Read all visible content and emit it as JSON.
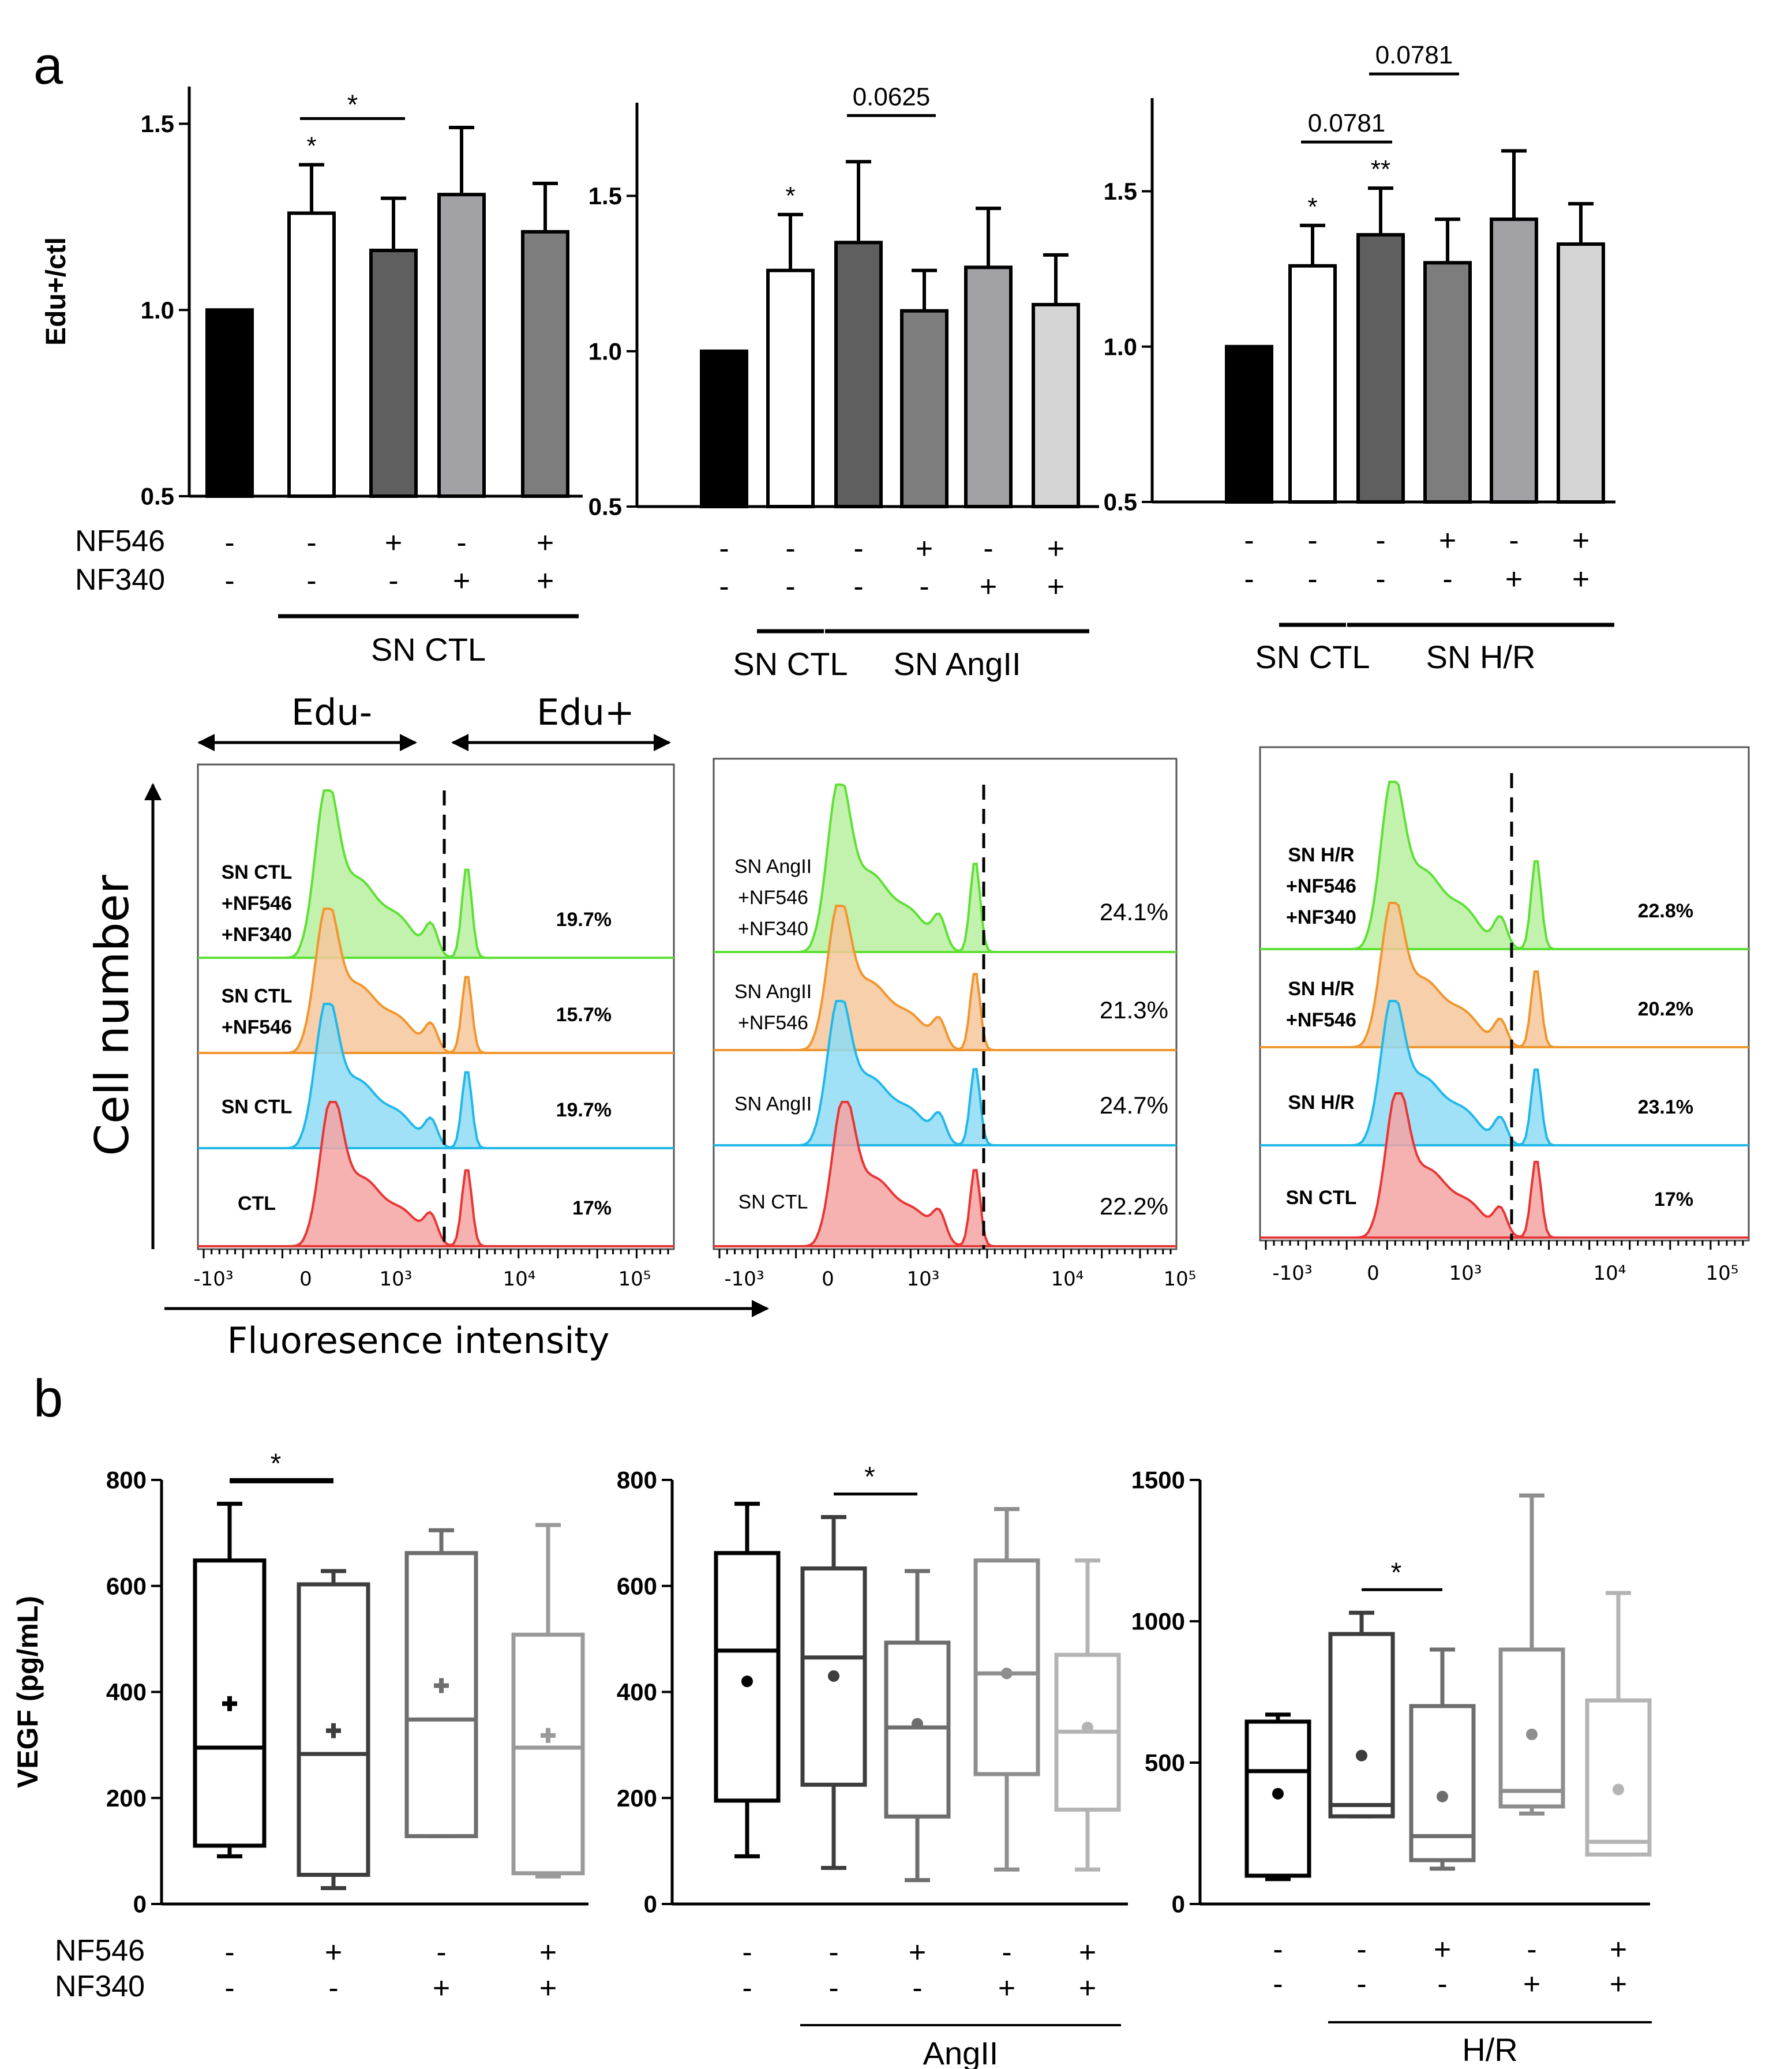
{
  "panel_labels": {
    "a": "a",
    "b": "b"
  },
  "symbols": {
    "minus": "-",
    "plus": "+"
  },
  "treatments": {
    "nf546": "NF546",
    "nf340": "NF340"
  },
  "chart_data": [
    {
      "id": "a1",
      "type": "bar",
      "ylabel": "Edu+/ctl",
      "ylim": [
        0.5,
        1.6
      ],
      "yticks": [
        {
          "v": 0.5,
          "label": "0.5"
        },
        {
          "v": 1.0,
          "label": "1.0"
        },
        {
          "v": 1.5,
          "label": "1.5"
        }
      ],
      "bars": [
        {
          "value": 1.0,
          "err": 0,
          "fill": "#000000"
        },
        {
          "value": 1.26,
          "err": 0.13,
          "fill": "#ffffff",
          "mark": "*"
        },
        {
          "value": 1.16,
          "err": 0.14,
          "fill": "#5f5f5f"
        },
        {
          "value": 1.31,
          "err": 0.18,
          "fill": "#a1a1a6"
        },
        {
          "value": 1.21,
          "err": 0.13,
          "fill": "#7d7d7d"
        }
      ],
      "nf546": [
        "-",
        "-",
        "+",
        "-",
        "+"
      ],
      "nf340": [
        "-",
        "-",
        "-",
        "+",
        "+"
      ],
      "comparisons": [
        {
          "from": 1,
          "to": 2,
          "label": "*"
        }
      ],
      "groups": [
        {
          "from": 1,
          "to": 4,
          "label": "SN CTL"
        }
      ]
    },
    {
      "id": "a2",
      "type": "bar",
      "ylabel": "",
      "ylim": [
        0.5,
        1.8
      ],
      "yticks": [
        {
          "v": 0.5,
          "label": "0.5"
        },
        {
          "v": 1.0,
          "label": "1.0"
        },
        {
          "v": 1.5,
          "label": "1.5"
        }
      ],
      "bars": [
        {
          "value": 1.0,
          "err": 0,
          "fill": "#000000"
        },
        {
          "value": 1.26,
          "err": 0.18,
          "fill": "#ffffff",
          "mark": "*"
        },
        {
          "value": 1.35,
          "err": 0.26,
          "fill": "#5f5f5f"
        },
        {
          "value": 1.13,
          "err": 0.13,
          "fill": "#7d7d7d"
        },
        {
          "value": 1.27,
          "err": 0.19,
          "fill": "#a1a1a6"
        },
        {
          "value": 1.15,
          "err": 0.16,
          "fill": "#d5d5d5"
        }
      ],
      "nf546": [
        "-",
        "-",
        "-",
        "+",
        "-",
        "+"
      ],
      "nf340": [
        "-",
        "-",
        "-",
        "-",
        "+",
        "+"
      ],
      "comparisons": [
        {
          "from": 2,
          "to": 3,
          "label": "0.0625"
        }
      ],
      "groups": [
        {
          "from": 1,
          "to": 1,
          "label": "SN CTL"
        },
        {
          "from": 2,
          "to": 5,
          "label": "SN AngII"
        }
      ]
    },
    {
      "id": "a3",
      "type": "bar",
      "ylabel": "",
      "ylim": [
        0.5,
        1.8
      ],
      "yticks": [
        {
          "v": 0.5,
          "label": "0.5"
        },
        {
          "v": 1.0,
          "label": "1.0"
        },
        {
          "v": 1.5,
          "label": "1.5"
        }
      ],
      "bars": [
        {
          "value": 1.0,
          "err": 0,
          "fill": "#000000"
        },
        {
          "value": 1.26,
          "err": 0.13,
          "fill": "#ffffff",
          "mark": "*"
        },
        {
          "value": 1.36,
          "err": 0.15,
          "fill": "#5f5f5f",
          "mark": "**"
        },
        {
          "value": 1.27,
          "err": 0.14,
          "fill": "#7d7d7d"
        },
        {
          "value": 1.41,
          "err": 0.22,
          "fill": "#a1a1a6"
        },
        {
          "value": 1.33,
          "err": 0.13,
          "fill": "#d5d5d5"
        }
      ],
      "nf546": [
        "-",
        "-",
        "-",
        "+",
        "-",
        "+"
      ],
      "nf340": [
        "-",
        "-",
        "-",
        "-",
        "+",
        "+"
      ],
      "comparisons": [
        {
          "from": 1,
          "to": 2,
          "label": "0.0781"
        },
        {
          "from": 2,
          "to": 3,
          "label": "0.0781"
        }
      ],
      "groups": [
        {
          "from": 1,
          "to": 1,
          "label": "SN CTL"
        },
        {
          "from": 2,
          "to": 5,
          "label": "SN H/R"
        }
      ]
    },
    {
      "id": "h1",
      "type": "histogram",
      "bold": true,
      "xticks": [
        "-10³",
        "0",
        "10³",
        "10⁴",
        "10⁵"
      ],
      "rows": [
        {
          "lines": [
            "SN CTL",
            "+NF546",
            "+NF340"
          ],
          "pct": "19.7%",
          "color": "#5ee035",
          "fill": "#b8f0a0",
          "p": 2
        },
        {
          "lines": [
            "SN CTL",
            "+NF546"
          ],
          "pct": "15.7%",
          "color": "#f0962e",
          "fill": "#f6c79b",
          "p": 2
        },
        {
          "lines": [
            "SN CTL"
          ],
          "pct": "19.7%",
          "color": "#20b8e8",
          "fill": "#8fdcf6",
          "p": 2
        },
        {
          "lines": [
            "CTL"
          ],
          "pct": "17%",
          "color": "#e83535",
          "fill": "#f4a3a3",
          "p": 1
        }
      ]
    },
    {
      "id": "h2",
      "type": "histogram",
      "bold": false,
      "xticks": [
        "-10³",
        "0",
        "10³",
        "10⁴",
        "10⁵"
      ],
      "rows": [
        {
          "lines": [
            "SN AngII",
            "+NF546",
            "+NF340"
          ],
          "pct": "24.1%",
          "color": "#5ee035",
          "fill": "#b8f0a0",
          "p": 2
        },
        {
          "lines": [
            "SN AngII",
            "+NF546"
          ],
          "pct": "21.3%",
          "color": "#f0962e",
          "fill": "#f6c79b",
          "p": 2
        },
        {
          "lines": [
            "SN AngII"
          ],
          "pct": "24.7%",
          "color": "#20b8e8",
          "fill": "#8fdcf6",
          "p": 2
        },
        {
          "lines": [
            "SN CTL"
          ],
          "pct": "22.2%",
          "color": "#e83535",
          "fill": "#f4a3a3",
          "p": 2
        }
      ]
    },
    {
      "id": "h3",
      "type": "histogram",
      "bold": true,
      "xticks": [
        "-10³",
        "0",
        "10³",
        "10⁴",
        "10⁵"
      ],
      "rows": [
        {
          "lines": [
            "SN H/R",
            "+NF546",
            "+NF340"
          ],
          "pct": "22.8%",
          "color": "#5ee035",
          "fill": "#b8f0a0",
          "p": 2
        },
        {
          "lines": [
            "SN H/R",
            "+NF546"
          ],
          "pct": "20.2%",
          "color": "#f0962e",
          "fill": "#f6c79b",
          "p": 2
        },
        {
          "lines": [
            "SN H/R"
          ],
          "pct": "23.1%",
          "color": "#20b8e8",
          "fill": "#8fdcf6",
          "p": 2
        },
        {
          "lines": [
            "SN CTL"
          ],
          "pct": "17%",
          "color": "#e83535",
          "fill": "#f4a3a3",
          "p": 2
        }
      ]
    },
    {
      "id": "b1",
      "type": "box",
      "ylabel": "VEGF (pg/mL)",
      "ylim": [
        0,
        800
      ],
      "yticks": [
        {
          "v": 0,
          "label": "0"
        },
        {
          "v": 200,
          "label": "200"
        },
        {
          "v": 400,
          "label": "400"
        },
        {
          "v": 600,
          "label": "600"
        },
        {
          "v": 800,
          "label": "800"
        }
      ],
      "boxes": [
        {
          "min": 90,
          "q1": 110,
          "median": 295,
          "q3": 648,
          "max": 755,
          "mean": 378,
          "color": "#000000",
          "mk": "plus"
        },
        {
          "min": 30,
          "q1": 55,
          "median": 283,
          "q3": 603,
          "max": 628,
          "mean": 327,
          "color": "#3d3d3d",
          "mk": "plus"
        },
        {
          "min": 128,
          "q1": 128,
          "median": 348,
          "q3": 662,
          "max": 705,
          "mean": 412,
          "color": "#6e6e6e",
          "mk": "plus"
        },
        {
          "min": 52,
          "q1": 58,
          "median": 295,
          "q3": 508,
          "max": 715,
          "mean": 318,
          "color": "#9a9a9a",
          "mk": "plus"
        }
      ],
      "nf546": [
        "-",
        "+",
        "-",
        "+"
      ],
      "nf340": [
        "-",
        "-",
        "+",
        "+"
      ],
      "comparisons": [
        {
          "from": 0,
          "to": 1,
          "label": "*"
        }
      ],
      "groups": []
    },
    {
      "id": "b2",
      "type": "box",
      "ylabel": "",
      "ylim": [
        0,
        800
      ],
      "yticks": [
        {
          "v": 0,
          "label": "0"
        },
        {
          "v": 200,
          "label": "200"
        },
        {
          "v": 400,
          "label": "400"
        },
        {
          "v": 600,
          "label": "600"
        },
        {
          "v": 800,
          "label": "800"
        }
      ],
      "boxes": [
        {
          "min": 90,
          "q1": 195,
          "median": 478,
          "q3": 662,
          "max": 755,
          "mean": 420,
          "color": "#000000",
          "mk": "dot"
        },
        {
          "min": 68,
          "q1": 225,
          "median": 465,
          "q3": 633,
          "max": 730,
          "mean": 430,
          "color": "#3d3d3d",
          "mk": "dot"
        },
        {
          "min": 45,
          "q1": 165,
          "median": 333,
          "q3": 493,
          "max": 628,
          "mean": 340,
          "color": "#6e6e6e",
          "mk": "dot"
        },
        {
          "min": 65,
          "q1": 245,
          "median": 435,
          "q3": 648,
          "max": 745,
          "mean": 435,
          "color": "#8e8e8e",
          "mk": "dot"
        },
        {
          "min": 65,
          "q1": 178,
          "median": 325,
          "q3": 470,
          "max": 648,
          "mean": 333,
          "color": "#b4b4b4",
          "mk": "dot"
        }
      ],
      "nf546": [
        "-",
        "-",
        "+",
        "-",
        "+"
      ],
      "nf340": [
        "-",
        "-",
        "-",
        "+",
        "+"
      ],
      "comparisons": [
        {
          "from": 1,
          "to": 2,
          "label": "*"
        }
      ],
      "groups": [
        {
          "from": 1,
          "to": 4,
          "label": "AngII"
        }
      ]
    },
    {
      "id": "b3",
      "type": "box",
      "ylabel": "",
      "ylim": [
        0,
        1500
      ],
      "yticks": [
        {
          "v": 0,
          "label": "0"
        },
        {
          "v": 500,
          "label": "500"
        },
        {
          "v": 1000,
          "label": "1000"
        },
        {
          "v": 1500,
          "label": "1500"
        }
      ],
      "boxes": [
        {
          "min": 88,
          "q1": 100,
          "median": 470,
          "q3": 645,
          "max": 670,
          "mean": 390,
          "color": "#000000",
          "mk": "dot"
        },
        {
          "min": 310,
          "q1": 310,
          "median": 350,
          "q3": 955,
          "max": 1030,
          "mean": 525,
          "color": "#3d3d3d",
          "mk": "dot"
        },
        {
          "min": 125,
          "q1": 155,
          "median": 240,
          "q3": 700,
          "max": 900,
          "mean": 380,
          "color": "#6e6e6e",
          "mk": "dot"
        },
        {
          "min": 320,
          "q1": 345,
          "median": 400,
          "q3": 900,
          "max": 1445,
          "mean": 600,
          "color": "#8e8e8e",
          "mk": "dot"
        },
        {
          "min": 175,
          "q1": 175,
          "median": 220,
          "q3": 720,
          "max": 1100,
          "mean": 405,
          "color": "#b4b4b4",
          "mk": "dot"
        }
      ],
      "nf546": [
        "-",
        "-",
        "+",
        "-",
        "+"
      ],
      "nf340": [
        "-",
        "-",
        "-",
        "+",
        "+"
      ],
      "comparisons": [
        {
          "from": 1,
          "to": 2,
          "label": "*"
        }
      ],
      "groups": [
        {
          "from": 1,
          "to": 4,
          "label": "H/R"
        }
      ]
    }
  ],
  "flow_annotations": {
    "edu_minus": "Edu-",
    "edu_plus": "Edu+",
    "cell_number": "Cell number",
    "fluorescence": "Fluoresence intensity"
  }
}
